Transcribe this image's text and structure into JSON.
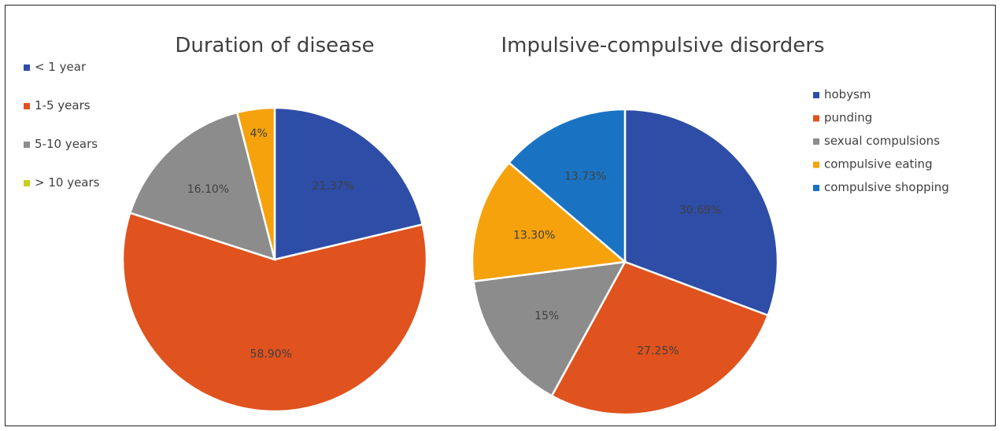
{
  "chart_data": [
    {
      "type": "pie",
      "title": "Duration of disease",
      "legend_position": "left",
      "categories": [
        "< 1 year",
        "1-5 years",
        "5-10 years",
        "> 10 years"
      ],
      "values": [
        21.37,
        58.9,
        16.1,
        4
      ],
      "data_labels": [
        "21.37%",
        "58.90%",
        "16.10%",
        "4%"
      ],
      "colors": [
        "#2E4DA7",
        "#E0521E",
        "#8C8C8C",
        "#F5A20D"
      ],
      "legend_colors": [
        "#2E4DA7",
        "#E0521E",
        "#8C8C8C",
        "#C9CE1A"
      ]
    },
    {
      "type": "pie",
      "title": "Impulsive-compulsive disorders",
      "legend_position": "right",
      "categories": [
        "hobysm",
        "punding",
        "sexual compulsions",
        "compulsive eating",
        "compulsive shopping"
      ],
      "values": [
        30.69,
        27.25,
        15,
        13.3,
        13.73
      ],
      "data_labels": [
        "30.69%",
        "27.25%",
        "15%",
        "13.30%",
        "13.73%"
      ],
      "colors": [
        "#2E4DA7",
        "#E0521E",
        "#8C8C8C",
        "#F5A20D",
        "#1A73C2"
      ],
      "legend_colors": [
        "#2E4DA7",
        "#E0521E",
        "#8C8C8C",
        "#F5A20D",
        "#1A73C2"
      ]
    }
  ]
}
